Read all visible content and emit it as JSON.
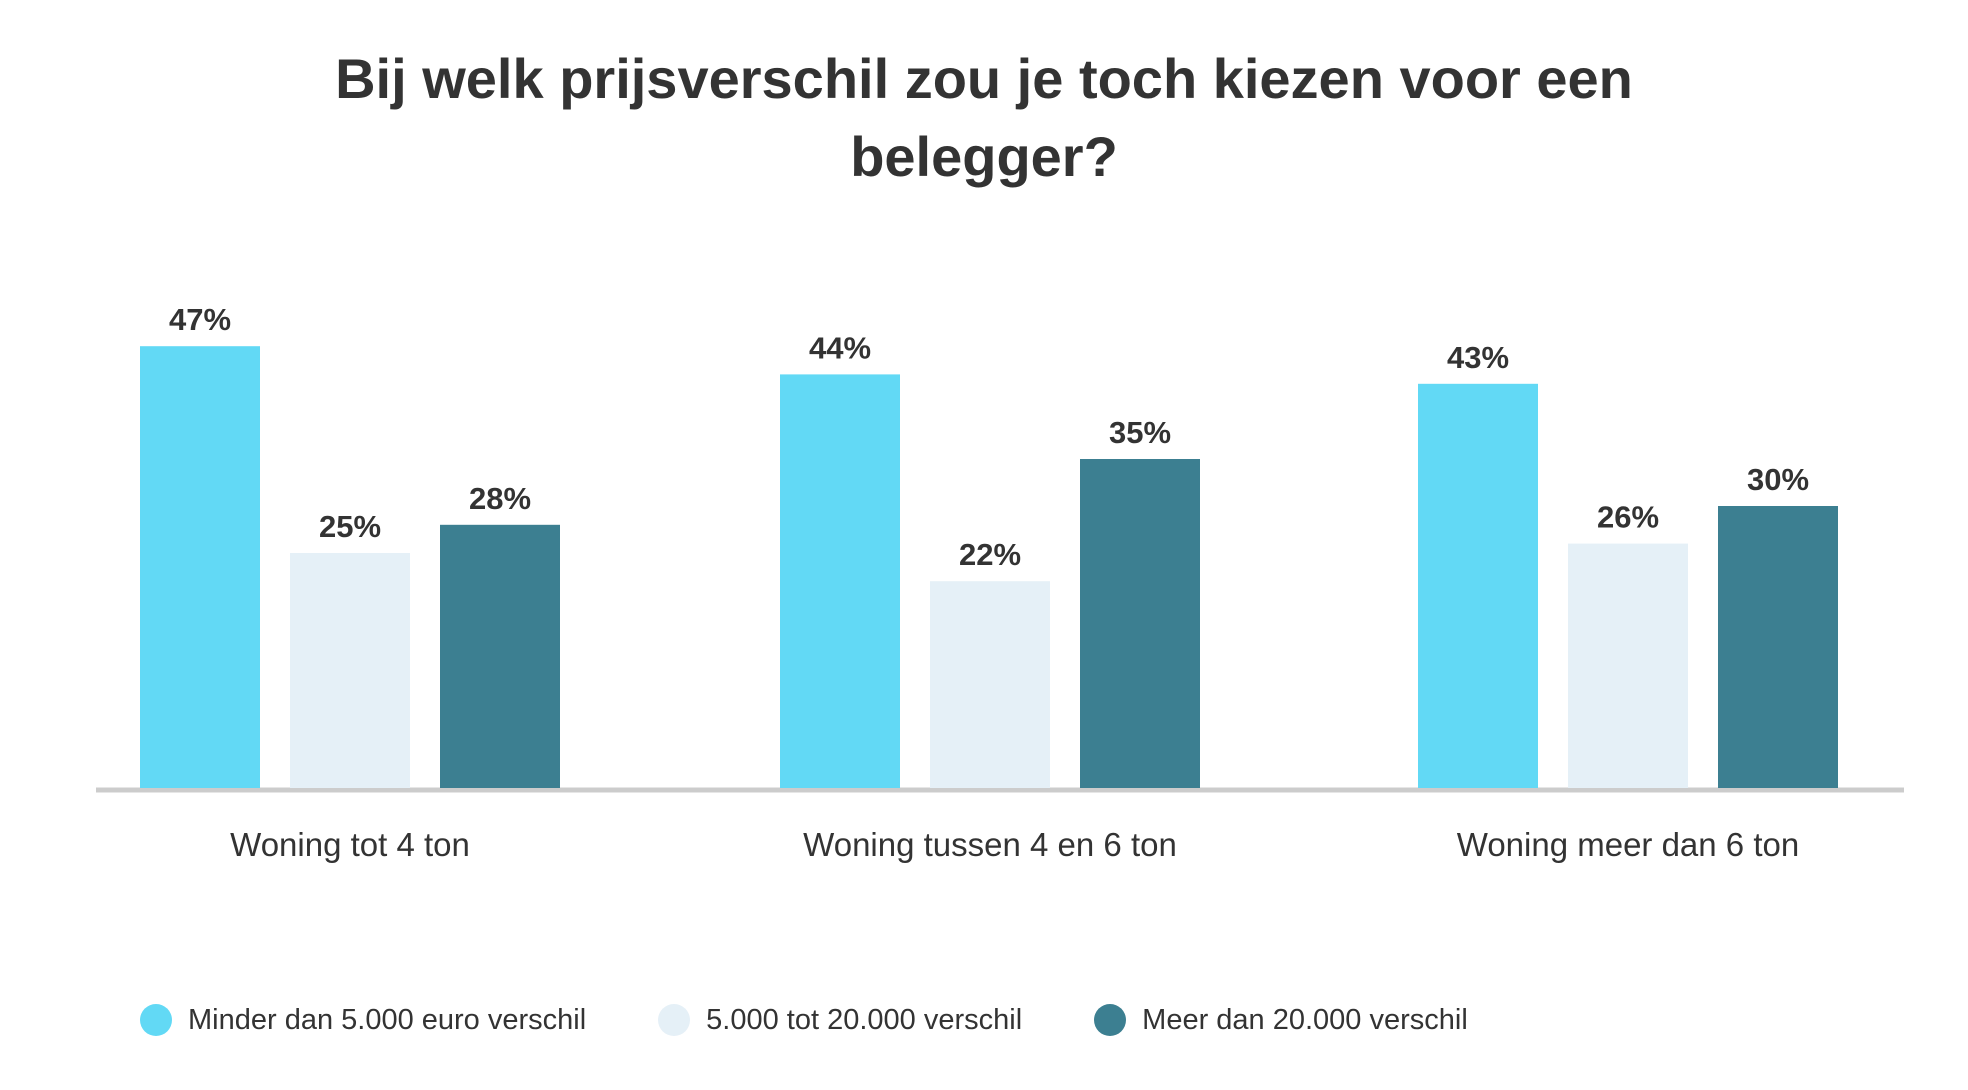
{
  "chart_data": {
    "type": "bar",
    "title_lines": [
      "Bij welk prijsverschil zou je toch kiezen voor een",
      "belegger?"
    ],
    "categories": [
      "Woning tot 4 ton",
      "Woning tussen 4 en 6 ton",
      "Woning meer dan 6 ton"
    ],
    "series": [
      {
        "name": "Minder dan 5.000 euro verschil",
        "color": "#62d9f5",
        "values": [
          47,
          44,
          43
        ],
        "labels": [
          "47%",
          "44%",
          "43%"
        ]
      },
      {
        "name": "5.000 tot 20.000 verschil",
        "color": "#e5f0f7",
        "values": [
          25,
          22,
          26
        ],
        "labels": [
          "25%",
          "22%",
          "26%"
        ]
      },
      {
        "name": "Meer dan 20.000 verschil",
        "color": "#3c7f91",
        "values": [
          28,
          35,
          30
        ],
        "labels": [
          "28%",
          "35%",
          "30%"
        ]
      }
    ],
    "ylim": [
      0,
      50
    ],
    "grid": false,
    "legend_position": "bottom-left",
    "axis_color": "#cccccc"
  }
}
